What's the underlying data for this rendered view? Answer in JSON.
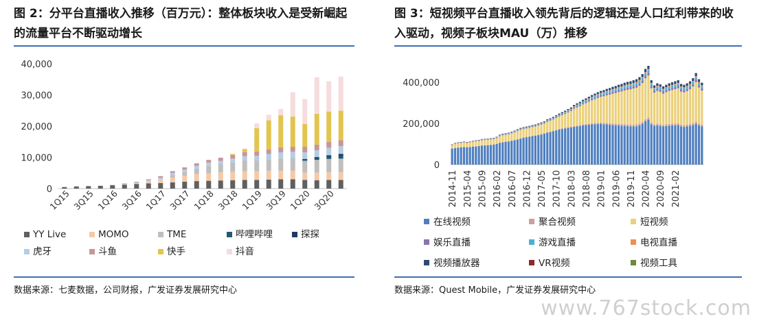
{
  "left": {
    "title": "图 2：分平台直播收入推移（百万元）：整体板块收入是受新崛起的流量平台不断驱动增长",
    "source": "数据来源：七麦数据，公司财报，广发证券发展研究中心",
    "chart_data": {
      "type": "bar",
      "stacked": true,
      "categories": [
        "1Q15",
        "2Q15",
        "3Q15",
        "4Q15",
        "1Q16",
        "2Q16",
        "3Q16",
        "4Q16",
        "1Q17",
        "2Q17",
        "3Q17",
        "4Q17",
        "1Q18",
        "2Q18",
        "3Q18",
        "4Q18",
        "1Q19",
        "2Q19",
        "3Q19",
        "4Q19",
        "1Q20",
        "2Q20",
        "3Q20",
        "4Q20"
      ],
      "tick_labels": [
        "1Q15",
        "3Q15",
        "1Q16",
        "3Q16",
        "1Q17",
        "3Q17",
        "1Q18",
        "3Q18",
        "1Q19",
        "3Q19",
        "1Q20",
        "3Q20"
      ],
      "ylim": [
        0,
        40000
      ],
      "yticks": [
        "0",
        "10,000",
        "20,000",
        "30,000",
        "40,000"
      ],
      "ytick_values": [
        0,
        10000,
        20000,
        30000,
        40000
      ],
      "series": [
        {
          "name": "YY Live",
          "color": "#606060",
          "values": [
            500,
            700,
            800,
            900,
            1100,
            1300,
            1500,
            1700,
            1800,
            2000,
            2200,
            2400,
            2500,
            2600,
            2700,
            2800,
            2800,
            2900,
            3000,
            3000,
            2800,
            2700,
            2800,
            2800
          ]
        },
        {
          "name": "MOMO",
          "color": "#f6c9a6",
          "values": [
            0,
            0,
            0,
            0,
            0,
            100,
            200,
            600,
            1100,
            1500,
            1900,
            2300,
            2400,
            2600,
            2700,
            2800,
            2800,
            2800,
            2700,
            2700,
            2300,
            2400,
            2400,
            2400
          ]
        },
        {
          "name": "TME",
          "color": "#bfbfbf",
          "values": [
            0,
            0,
            0,
            0,
            0,
            0,
            0,
            0,
            0,
            800,
            1200,
            1700,
            2400,
            2600,
            3000,
            3400,
            3400,
            3700,
            4000,
            4100,
            3800,
            4100,
            4300,
            4400
          ]
        },
        {
          "name": "哔哩哔哩",
          "color": "#1f5b73",
          "values": [
            0,
            0,
            0,
            0,
            0,
            0,
            0,
            0,
            0,
            0,
            0,
            0,
            0,
            0,
            0,
            0,
            0,
            0,
            0,
            0,
            300,
            500,
            700,
            800
          ]
        },
        {
          "name": "探探",
          "color": "#1d3b5c",
          "values": [
            0,
            0,
            0,
            0,
            0,
            0,
            0,
            0,
            0,
            0,
            0,
            0,
            0,
            0,
            0,
            0,
            0,
            0,
            0,
            0,
            300,
            400,
            500,
            700
          ]
        },
        {
          "name": "虎牙",
          "color": "#b6cde3",
          "values": [
            0,
            0,
            0,
            0,
            100,
            200,
            300,
            400,
            600,
            700,
            800,
            900,
            1000,
            1100,
            1200,
            1400,
            1500,
            1700,
            1900,
            2000,
            2100,
            2200,
            2400,
            2500
          ]
        },
        {
          "name": "斗鱼",
          "color": "#c7969a",
          "values": [
            0,
            0,
            0,
            0,
            0,
            100,
            200,
            300,
            500,
            600,
            700,
            800,
            900,
            1000,
            1200,
            1300,
            1400,
            1500,
            1600,
            1600,
            1800,
            1800,
            1900,
            1900
          ]
        },
        {
          "name": "快手",
          "color": "#e3c44f",
          "values": [
            0,
            0,
            0,
            0,
            0,
            0,
            0,
            0,
            0,
            0,
            0,
            0,
            0,
            0,
            300,
            1000,
            7500,
            9300,
            10300,
            9700,
            7300,
            9900,
            9700,
            9500
          ]
        },
        {
          "name": "抖音",
          "color": "#f6dcdc",
          "values": [
            0,
            0,
            0,
            0,
            0,
            0,
            0,
            0,
            0,
            0,
            0,
            0,
            0,
            0,
            0,
            100,
            1500,
            1800,
            2000,
            7800,
            8000,
            11700,
            9700,
            10900
          ]
        }
      ]
    }
  },
  "right": {
    "title": "图 3：短视频平台直播收入领先背后的逻辑还是人口红利带来的收入驱动，视频子板块MAU（万）推移",
    "source": "数据来源：Quest Mobile，广发证券发展研究中心",
    "chart_data": {
      "type": "bar",
      "stacked": true,
      "x_start": "2014-11",
      "x_end": "2021-04",
      "tick_labels": [
        "2014-11",
        "2015-04",
        "2015-09",
        "2016-02",
        "2016-07",
        "2016-12",
        "2017-05",
        "2017-10",
        "2018-03",
        "2018-08",
        "2019-01",
        "2019-06",
        "2019-11",
        "2020-04",
        "2020-09",
        "2021-02"
      ],
      "ylim": [
        0,
        500000
      ],
      "yticks": [
        "0",
        "200,000",
        "400,000"
      ],
      "ytick_values": [
        0,
        200000,
        400000
      ],
      "totals": [
        98000,
        105000,
        108000,
        110000,
        112000,
        110000,
        112000,
        115000,
        118000,
        120000,
        124000,
        125000,
        126000,
        128000,
        130000,
        135000,
        145000,
        150000,
        152000,
        155000,
        160000,
        165000,
        172000,
        178000,
        182000,
        185000,
        188000,
        192000,
        195000,
        200000,
        205000,
        210000,
        220000,
        225000,
        232000,
        240000,
        248000,
        255000,
        262000,
        270000,
        278000,
        290000,
        298000,
        305000,
        315000,
        322000,
        330000,
        338000,
        345000,
        352000,
        358000,
        362000,
        368000,
        372000,
        378000,
        382000,
        388000,
        392000,
        398000,
        402000,
        405000,
        410000,
        415000,
        425000,
        440000,
        465000,
        480000,
        410000,
        385000,
        395000,
        390000,
        380000,
        388000,
        395000,
        400000,
        405000,
        410000,
        392000,
        388000,
        395000,
        405000,
        420000,
        445000,
        415000,
        398000
      ],
      "base_values": [
        78000,
        80000,
        82000,
        84000,
        85000,
        84000,
        85000,
        87000,
        88000,
        90000,
        92000,
        93000,
        94000,
        95000,
        97000,
        100000,
        105000,
        108000,
        110000,
        112000,
        115000,
        118000,
        122000,
        126000,
        130000,
        133000,
        135000,
        138000,
        140000,
        143000,
        146000,
        150000,
        155000,
        158000,
        162000,
        166000,
        170000,
        173000,
        176000,
        178000,
        180000,
        183000,
        185000,
        187000,
        190000,
        192000,
        194000,
        195000,
        196000,
        197000,
        198000,
        196000,
        195000,
        193000,
        192000,
        191000,
        190000,
        189000,
        188000,
        187000,
        186000,
        185000,
        186000,
        190000,
        198000,
        210000,
        218000,
        195000,
        188000,
        190000,
        188000,
        185000,
        187000,
        189000,
        190000,
        191000,
        192000,
        185000,
        183000,
        185000,
        188000,
        192000,
        198000,
        190000,
        185000
      ],
      "series": [
        {
          "name": "在线视频",
          "color": "#4f7fbf"
        },
        {
          "name": "聚合视频",
          "color": "#c9a09e"
        },
        {
          "name": "短视频",
          "color": "#ebd07a"
        },
        {
          "name": "娱乐直播",
          "color": "#8a74a8"
        },
        {
          "name": "游戏直播",
          "color": "#4bb0d2"
        },
        {
          "name": "电视直播",
          "color": "#ef8f4e"
        },
        {
          "name": "视频播放器",
          "color": "#2f4a72"
        },
        {
          "name": "VR视频",
          "color": "#8a2a2a"
        },
        {
          "name": "视频工具",
          "color": "#6f8a3a"
        }
      ]
    }
  },
  "watermark": "www.767stock.com"
}
